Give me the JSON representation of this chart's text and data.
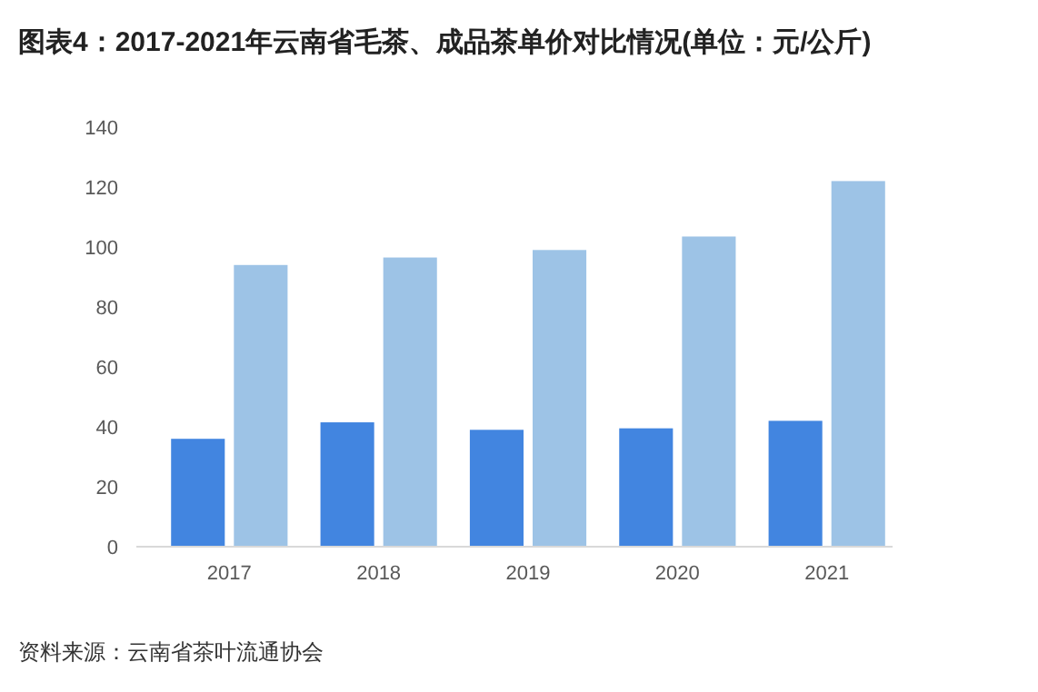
{
  "chart_data": {
    "type": "bar",
    "title": "图表4：2017-2021年云南省毛茶、成品茶单价对比情况(单位：元/公斤)",
    "categories": [
      "2017",
      "2018",
      "2019",
      "2020",
      "2021"
    ],
    "series": [
      {
        "color": "#4285e0",
        "values": [
          36,
          41.5,
          39,
          39.5,
          42
        ]
      },
      {
        "color": "#9dc3e6",
        "values": [
          94,
          96.5,
          99,
          103.5,
          122
        ]
      }
    ],
    "ylim": [
      0,
      140
    ],
    "yticks": [
      0,
      20,
      40,
      60,
      80,
      100,
      120,
      140
    ],
    "grid": false,
    "legend": false,
    "annotations": [
      "资料来源：云南省茶叶流通协会"
    ]
  }
}
